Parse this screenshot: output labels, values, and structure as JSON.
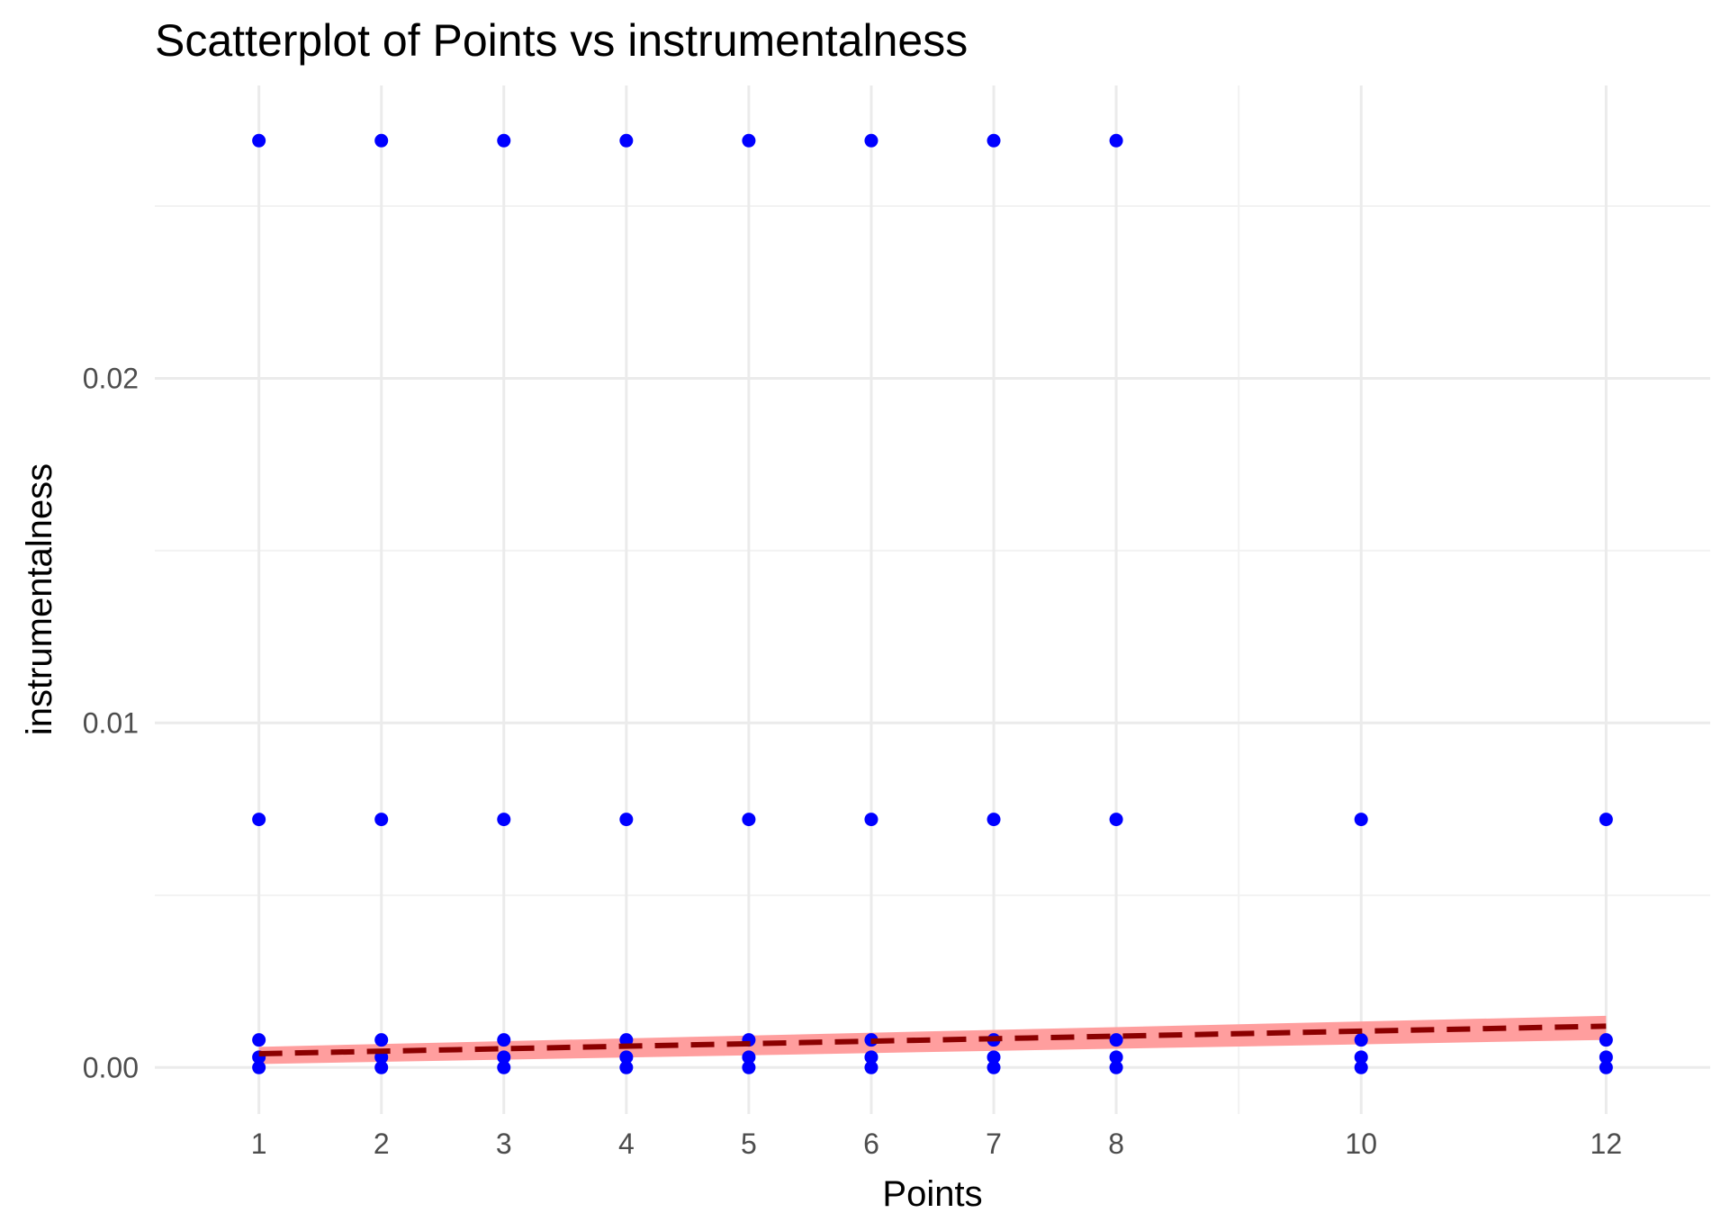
{
  "chart_data": {
    "type": "scatter",
    "title": "Scatterplot of Points vs  instrumentalness",
    "xlabel": "Points",
    "ylabel": "instrumentalness",
    "xlim": [
      0.15,
      12.85
    ],
    "ylim": [
      -0.00135,
      0.0285
    ],
    "x_ticks": [
      1,
      2,
      3,
      4,
      5,
      6,
      7,
      8,
      10,
      12
    ],
    "x_minor_ticks": [
      9
    ],
    "y_ticks": [
      0.0,
      0.01,
      0.02
    ],
    "y_tick_labels": [
      "0.00",
      "0.01",
      "0.02"
    ],
    "y_minor_ticks": [
      0.005,
      0.015,
      0.025
    ],
    "grid": true,
    "colors": {
      "points": "#0000ff",
      "trend_line": "#8b0000",
      "confidence_band": "#ff9999"
    },
    "series": [
      {
        "kind": "points",
        "x": [
          1,
          1,
          1,
          1,
          1,
          2,
          2,
          2,
          2,
          2,
          3,
          3,
          3,
          3,
          3,
          4,
          4,
          4,
          4,
          4,
          5,
          5,
          5,
          5,
          5,
          6,
          6,
          6,
          6,
          6,
          7,
          7,
          7,
          7,
          7,
          8,
          8,
          8,
          8,
          8,
          10,
          10,
          10,
          10,
          12,
          12,
          12,
          12
        ],
        "y": [
          0.0269,
          0.0072,
          0.0008,
          0.0003,
          0.0,
          0.0269,
          0.0072,
          0.0008,
          0.0003,
          0.0,
          0.0269,
          0.0072,
          0.0008,
          0.0003,
          0.0,
          0.0269,
          0.0072,
          0.0008,
          0.0003,
          0.0,
          0.0269,
          0.0072,
          0.0008,
          0.0003,
          0.0,
          0.0269,
          0.0072,
          0.0008,
          0.0003,
          0.0,
          0.0269,
          0.0072,
          0.0008,
          0.0003,
          0.0,
          0.0269,
          0.0072,
          0.0008,
          0.0003,
          0.0,
          0.0072,
          0.0008,
          0.0003,
          0.0,
          0.0072,
          0.0008,
          0.0003,
          0.0
        ]
      },
      {
        "kind": "linear_fit",
        "x": [
          1,
          12
        ],
        "y": [
          0.0004,
          0.0012
        ],
        "ci_lower": [
          0.0001,
          0.0008
        ],
        "ci_upper": [
          0.0006,
          0.0015
        ]
      }
    ]
  }
}
